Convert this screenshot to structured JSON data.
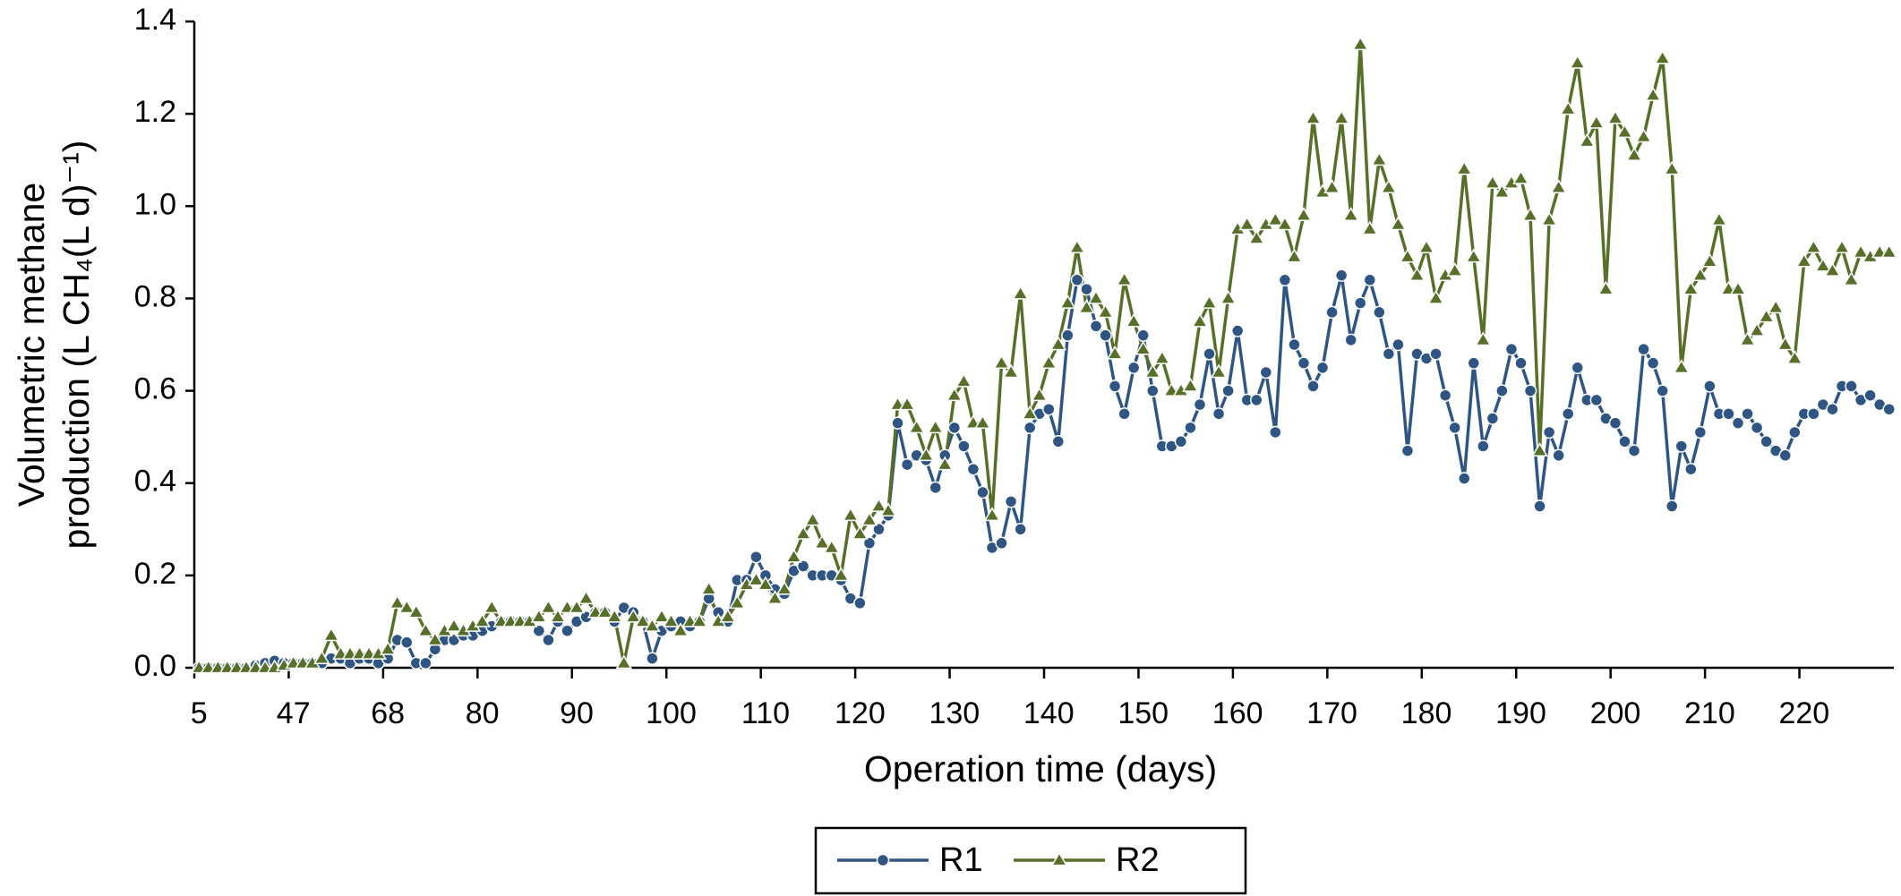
{
  "chart_data": {
    "type": "line",
    "xlabel": "Operation time (days)",
    "ylabel": [
      "Volumetric methane",
      "production (L CH₄(L d)⁻¹)"
    ],
    "categories": [
      "5",
      null,
      null,
      null,
      null,
      null,
      null,
      null,
      null,
      null,
      "47",
      null,
      null,
      null,
      null,
      null,
      null,
      null,
      null,
      null,
      "68",
      null,
      null,
      null,
      null,
      null,
      null,
      null,
      null,
      null,
      "80",
      null,
      null,
      null,
      null,
      null,
      null,
      null,
      null,
      null,
      "90",
      null,
      null,
      null,
      null,
      null,
      null,
      null,
      null,
      null,
      "100",
      null,
      null,
      null,
      null,
      null,
      null,
      null,
      null,
      null,
      "110",
      null,
      null,
      null,
      null,
      null,
      null,
      null,
      null,
      null,
      "120",
      null,
      null,
      null,
      null,
      null,
      null,
      null,
      null,
      null,
      "130",
      null,
      null,
      null,
      null,
      null,
      null,
      null,
      null,
      null,
      "140",
      null,
      null,
      null,
      null,
      null,
      null,
      null,
      null,
      null,
      "150",
      null,
      null,
      null,
      null,
      null,
      null,
      null,
      null,
      null,
      "160",
      null,
      null,
      null,
      null,
      null,
      null,
      null,
      null,
      null,
      "170",
      null,
      null,
      null,
      null,
      null,
      null,
      null,
      null,
      null,
      "180",
      null,
      null,
      null,
      null,
      null,
      null,
      null,
      null,
      null,
      "190",
      null,
      null,
      null,
      null,
      null,
      null,
      null,
      null,
      null,
      "200",
      null,
      null,
      null,
      null,
      null,
      null,
      null,
      null,
      null,
      "210",
      null,
      null,
      null,
      null,
      null,
      null,
      null,
      null,
      null,
      "220",
      null,
      null,
      null,
      null,
      null,
      null,
      null,
      null,
      null
    ],
    "ylim": [
      0,
      1.4
    ],
    "yticks": [
      {
        "value": 0,
        "label": "0.0"
      },
      0.2,
      0.4,
      0.6,
      0.8,
      {
        "value": 1,
        "label": "1.0"
      },
      1.2,
      1.4
    ],
    "legend": "bottom",
    "series": [
      {
        "name": "R1",
        "color": "#2f5583",
        "marker": "circle",
        "values": [
          0,
          0,
          0,
          0,
          0,
          0,
          0.005,
          0.01,
          0.015,
          0.01,
          0.01,
          0.01,
          0.01,
          0.01,
          0.02,
          0.02,
          0.01,
          0.02,
          0.02,
          0.01,
          0.02,
          0.06,
          0.055,
          0.01,
          0.01,
          0.04,
          0.06,
          0.06,
          0.07,
          0.07,
          0.08,
          0.09,
          0.1,
          0.1,
          0.1,
          0.1,
          0.08,
          0.06,
          0.1,
          0.08,
          0.1,
          0.11,
          0.12,
          0.12,
          0.1,
          0.13,
          0.12,
          0.1,
          0.02,
          0.08,
          0.09,
          0.1,
          0.09,
          0.1,
          0.15,
          0.12,
          0.1,
          0.19,
          0.19,
          0.24,
          0.2,
          0.17,
          0.16,
          0.21,
          0.22,
          0.2,
          0.2,
          0.2,
          0.19,
          0.15,
          0.14,
          0.27,
          0.3,
          0.33,
          0.53,
          0.44,
          0.46,
          0.45,
          0.39,
          0.46,
          0.52,
          0.48,
          0.43,
          0.38,
          0.26,
          0.27,
          0.36,
          0.3,
          0.52,
          0.55,
          0.56,
          0.49,
          0.72,
          0.84,
          0.82,
          0.74,
          0.72,
          0.61,
          0.55,
          0.65,
          0.72,
          0.6,
          0.48,
          0.48,
          0.49,
          0.52,
          0.57,
          0.68,
          0.55,
          0.6,
          0.73,
          0.58,
          0.58,
          0.64,
          0.51,
          0.84,
          0.7,
          0.66,
          0.61,
          0.65,
          0.77,
          0.85,
          0.71,
          0.79,
          0.84,
          0.77,
          0.68,
          0.7,
          0.47,
          0.68,
          0.67,
          0.68,
          0.59,
          0.52,
          0.41,
          0.66,
          0.48,
          0.54,
          0.6,
          0.69,
          0.66,
          0.6,
          0.35,
          0.51,
          0.46,
          0.55,
          0.65,
          0.58,
          0.58,
          0.54,
          0.53,
          0.49,
          0.47,
          0.69,
          0.66,
          0.6,
          0.35,
          0.48,
          0.43,
          0.51,
          0.61,
          0.55,
          0.55,
          0.53,
          0.55,
          0.52,
          0.49,
          0.47,
          0.46,
          0.51,
          0.55,
          0.55,
          0.57,
          0.56,
          0.61,
          0.61,
          0.58,
          0.59,
          0.57,
          0.56
        ]
      },
      {
        "name": "R2",
        "color": "#566f29",
        "marker": "triangle",
        "values": [
          0,
          0,
          0,
          0,
          0,
          0,
          0,
          0,
          0,
          0.005,
          0.01,
          0.01,
          0.01,
          0.02,
          0.07,
          0.03,
          0.03,
          0.03,
          0.03,
          0.03,
          0.04,
          0.14,
          0.13,
          0.12,
          0.08,
          0.06,
          0.08,
          0.09,
          0.08,
          0.09,
          0.1,
          0.13,
          0.1,
          0.1,
          0.1,
          0.1,
          0.11,
          0.13,
          0.11,
          0.13,
          0.13,
          0.15,
          0.12,
          0.12,
          0.11,
          0.01,
          0.11,
          0.1,
          0.09,
          0.11,
          0.1,
          0.08,
          0.1,
          0.1,
          0.17,
          0.1,
          0.11,
          0.14,
          0.18,
          0.19,
          0.18,
          0.15,
          0.17,
          0.24,
          0.29,
          0.32,
          0.27,
          0.26,
          0.2,
          0.33,
          0.29,
          0.32,
          0.35,
          0.34,
          0.57,
          0.57,
          0.52,
          0.46,
          0.52,
          0.44,
          0.59,
          0.62,
          0.53,
          0.53,
          0.33,
          0.66,
          0.64,
          0.81,
          0.55,
          0.59,
          0.66,
          0.7,
          0.79,
          0.91,
          0.78,
          0.8,
          0.77,
          0.68,
          0.84,
          0.75,
          0.69,
          0.64,
          0.67,
          0.6,
          0.6,
          0.61,
          0.75,
          0.79,
          0.64,
          0.8,
          0.95,
          0.96,
          0.93,
          0.96,
          0.97,
          0.96,
          0.89,
          0.98,
          1.19,
          1.03,
          1.04,
          1.19,
          0.98,
          1.35,
          0.95,
          1.1,
          1.04,
          0.96,
          0.89,
          0.85,
          0.91,
          0.8,
          0.85,
          0.86,
          1.08,
          0.89,
          0.71,
          1.05,
          1.03,
          1.05,
          1.06,
          0.98,
          0.47,
          0.97,
          1.04,
          1.21,
          1.31,
          1.14,
          1.18,
          0.82,
          1.19,
          1.16,
          1.11,
          1.15,
          1.24,
          1.32,
          1.08,
          0.65,
          0.82,
          0.85,
          0.88,
          0.97,
          0.82,
          0.82,
          0.71,
          0.73,
          0.76,
          0.78,
          0.7,
          0.67,
          0.88,
          0.91,
          0.87,
          0.86,
          0.91,
          0.84,
          0.9,
          0.89,
          0.9,
          0.9
        ]
      }
    ]
  }
}
